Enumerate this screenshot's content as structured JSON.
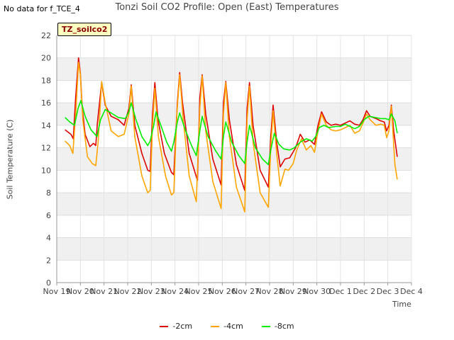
{
  "header": {
    "no_data_text": "No data for f_TCE_4",
    "title": "Tonzi Soil CO2 Profile: Open (East) Temperatures",
    "badge": "TZ_soilco2"
  },
  "chart_data": {
    "type": "line",
    "title": "Tonzi Soil CO2 Profile: Open (East) Temperatures",
    "xlabel": "Time",
    "ylabel": "Soil Temperature (C)",
    "ylim": [
      0,
      22
    ],
    "xlim": [
      0,
      15
    ],
    "grid": true,
    "legend_position": "bottom",
    "yticks": [
      0,
      2,
      4,
      6,
      8,
      10,
      12,
      14,
      16,
      18,
      20,
      22
    ],
    "xticks": [
      {
        "x": 0,
        "label": "Nov 19"
      },
      {
        "x": 1,
        "label": "Nov 20"
      },
      {
        "x": 2,
        "label": "Nov 21"
      },
      {
        "x": 3,
        "label": "Nov 22"
      },
      {
        "x": 4,
        "label": "Nov 23"
      },
      {
        "x": 5,
        "label": "Nov 24"
      },
      {
        "x": 6,
        "label": "Nov 25"
      },
      {
        "x": 7,
        "label": "Nov 26"
      },
      {
        "x": 8,
        "label": "Nov 27"
      },
      {
        "x": 9,
        "label": "Nov 28"
      },
      {
        "x": 10,
        "label": "Nov 29"
      },
      {
        "x": 11,
        "label": "Nov 30"
      },
      {
        "x": 12,
        "label": "Dec 1"
      },
      {
        "x": 13,
        "label": "Dec 2"
      },
      {
        "x": 14,
        "label": "Dec 3"
      },
      {
        "x": 15,
        "label": "Dec 4"
      }
    ],
    "series": [
      {
        "name": "-2cm",
        "color": "#dd0000",
        "points": [
          [
            0.35,
            13.6
          ],
          [
            0.6,
            13.2
          ],
          [
            0.7,
            12.8
          ],
          [
            0.8,
            16.5
          ],
          [
            0.92,
            20.0
          ],
          [
            1.0,
            18.6
          ],
          [
            1.08,
            15.5
          ],
          [
            1.2,
            13.2
          ],
          [
            1.4,
            12.1
          ],
          [
            1.55,
            12.4
          ],
          [
            1.65,
            12.2
          ],
          [
            1.72,
            14.2
          ],
          [
            1.9,
            17.8
          ],
          [
            2.05,
            15.8
          ],
          [
            2.3,
            14.8
          ],
          [
            2.6,
            14.5
          ],
          [
            2.85,
            14.0
          ],
          [
            3.05,
            15.5
          ],
          [
            3.15,
            17.6
          ],
          [
            3.3,
            14.0
          ],
          [
            3.6,
            11.5
          ],
          [
            3.85,
            10.0
          ],
          [
            3.95,
            9.9
          ],
          [
            4.05,
            15.0
          ],
          [
            4.15,
            17.8
          ],
          [
            4.28,
            14.5
          ],
          [
            4.55,
            11.5
          ],
          [
            4.85,
            9.8
          ],
          [
            4.95,
            9.6
          ],
          [
            5.1,
            16.0
          ],
          [
            5.2,
            18.7
          ],
          [
            5.32,
            16.0
          ],
          [
            5.6,
            11.5
          ],
          [
            5.95,
            9.1
          ],
          [
            6.05,
            16.5
          ],
          [
            6.15,
            18.5
          ],
          [
            6.3,
            15.0
          ],
          [
            6.6,
            11.0
          ],
          [
            6.95,
            8.7
          ],
          [
            7.05,
            16.0
          ],
          [
            7.15,
            17.9
          ],
          [
            7.3,
            14.5
          ],
          [
            7.6,
            10.5
          ],
          [
            7.95,
            8.2
          ],
          [
            8.05,
            15.5
          ],
          [
            8.15,
            17.8
          ],
          [
            8.3,
            14.0
          ],
          [
            8.6,
            10.0
          ],
          [
            8.95,
            8.5
          ],
          [
            9.05,
            13.0
          ],
          [
            9.15,
            15.8
          ],
          [
            9.3,
            12.5
          ],
          [
            9.45,
            10.3
          ],
          [
            9.65,
            11.0
          ],
          [
            9.85,
            11.1
          ],
          [
            10.1,
            12.0
          ],
          [
            10.3,
            13.2
          ],
          [
            10.5,
            12.5
          ],
          [
            10.7,
            12.7
          ],
          [
            10.9,
            12.3
          ],
          [
            11.05,
            14.0
          ],
          [
            11.2,
            15.2
          ],
          [
            11.4,
            14.3
          ],
          [
            11.6,
            14.0
          ],
          [
            11.8,
            14.1
          ],
          [
            12.0,
            14.0
          ],
          [
            12.2,
            14.2
          ],
          [
            12.4,
            14.4
          ],
          [
            12.6,
            14.1
          ],
          [
            12.8,
            14.0
          ],
          [
            12.95,
            14.5
          ],
          [
            13.1,
            15.3
          ],
          [
            13.25,
            14.8
          ],
          [
            13.5,
            14.6
          ],
          [
            13.7,
            14.4
          ],
          [
            13.85,
            14.3
          ],
          [
            13.95,
            13.5
          ],
          [
            14.05,
            14.0
          ],
          [
            14.15,
            15.8
          ],
          [
            14.25,
            13.5
          ],
          [
            14.4,
            11.2
          ]
        ]
      },
      {
        "name": "-4cm",
        "color": "#ffa500",
        "points": [
          [
            0.35,
            12.6
          ],
          [
            0.55,
            12.2
          ],
          [
            0.68,
            11.5
          ],
          [
            0.8,
            15.0
          ],
          [
            0.92,
            19.6
          ],
          [
            1.0,
            18.5
          ],
          [
            1.1,
            14.5
          ],
          [
            1.3,
            11.2
          ],
          [
            1.5,
            10.6
          ],
          [
            1.65,
            10.4
          ],
          [
            1.75,
            12.5
          ],
          [
            1.9,
            17.9
          ],
          [
            2.05,
            16.0
          ],
          [
            2.3,
            13.5
          ],
          [
            2.6,
            13.0
          ],
          [
            2.85,
            13.2
          ],
          [
            3.05,
            15.0
          ],
          [
            3.15,
            17.5
          ],
          [
            3.3,
            13.0
          ],
          [
            3.6,
            9.5
          ],
          [
            3.85,
            8.0
          ],
          [
            3.95,
            8.2
          ],
          [
            4.05,
            14.0
          ],
          [
            4.15,
            17.3
          ],
          [
            4.3,
            13.0
          ],
          [
            4.6,
            9.5
          ],
          [
            4.85,
            7.8
          ],
          [
            4.95,
            8.0
          ],
          [
            5.08,
            15.0
          ],
          [
            5.2,
            18.5
          ],
          [
            5.35,
            14.5
          ],
          [
            5.6,
            9.5
          ],
          [
            5.9,
            7.2
          ],
          [
            6.05,
            15.5
          ],
          [
            6.15,
            18.4
          ],
          [
            6.3,
            13.5
          ],
          [
            6.6,
            9.0
          ],
          [
            6.95,
            6.6
          ],
          [
            7.05,
            15.0
          ],
          [
            7.15,
            17.8
          ],
          [
            7.3,
            13.0
          ],
          [
            7.6,
            8.5
          ],
          [
            7.95,
            6.3
          ],
          [
            8.05,
            14.5
          ],
          [
            8.15,
            17.5
          ],
          [
            8.3,
            12.5
          ],
          [
            8.6,
            8.0
          ],
          [
            8.95,
            6.7
          ],
          [
            9.05,
            12.0
          ],
          [
            9.15,
            15.3
          ],
          [
            9.3,
            11.5
          ],
          [
            9.45,
            8.6
          ],
          [
            9.65,
            10.1
          ],
          [
            9.8,
            10.0
          ],
          [
            10.0,
            10.6
          ],
          [
            10.15,
            11.8
          ],
          [
            10.35,
            12.8
          ],
          [
            10.55,
            11.8
          ],
          [
            10.75,
            12.2
          ],
          [
            10.9,
            11.6
          ],
          [
            11.05,
            13.5
          ],
          [
            11.2,
            15.0
          ],
          [
            11.4,
            14.0
          ],
          [
            11.6,
            13.6
          ],
          [
            11.8,
            13.5
          ],
          [
            12.0,
            13.6
          ],
          [
            12.2,
            13.8
          ],
          [
            12.4,
            14.0
          ],
          [
            12.6,
            13.3
          ],
          [
            12.8,
            13.5
          ],
          [
            12.95,
            14.2
          ],
          [
            13.1,
            15.0
          ],
          [
            13.25,
            14.5
          ],
          [
            13.5,
            14.0
          ],
          [
            13.7,
            14.1
          ],
          [
            13.85,
            14.0
          ],
          [
            13.95,
            12.9
          ],
          [
            14.05,
            13.5
          ],
          [
            14.15,
            15.7
          ],
          [
            14.3,
            10.5
          ],
          [
            14.4,
            9.2
          ]
        ]
      },
      {
        "name": "-8cm",
        "color": "#00ee00",
        "points": [
          [
            0.35,
            14.7
          ],
          [
            0.55,
            14.3
          ],
          [
            0.75,
            14.0
          ],
          [
            0.9,
            15.5
          ],
          [
            1.02,
            16.2
          ],
          [
            1.2,
            14.8
          ],
          [
            1.45,
            13.6
          ],
          [
            1.7,
            13.0
          ],
          [
            1.85,
            14.5
          ],
          [
            2.05,
            15.4
          ],
          [
            2.3,
            15.1
          ],
          [
            2.6,
            14.7
          ],
          [
            2.9,
            14.6
          ],
          [
            3.05,
            15.2
          ],
          [
            3.15,
            16.0
          ],
          [
            3.35,
            14.5
          ],
          [
            3.6,
            13.0
          ],
          [
            3.85,
            12.2
          ],
          [
            3.95,
            12.6
          ],
          [
            4.1,
            14.0
          ],
          [
            4.2,
            15.2
          ],
          [
            4.4,
            14.0
          ],
          [
            4.65,
            12.5
          ],
          [
            4.85,
            11.7
          ],
          [
            4.95,
            12.5
          ],
          [
            5.1,
            14.3
          ],
          [
            5.2,
            15.1
          ],
          [
            5.45,
            13.5
          ],
          [
            5.7,
            12.2
          ],
          [
            5.9,
            11.3
          ],
          [
            6.05,
            13.5
          ],
          [
            6.15,
            14.8
          ],
          [
            6.4,
            13.0
          ],
          [
            6.7,
            11.8
          ],
          [
            6.95,
            11.0
          ],
          [
            7.05,
            13.0
          ],
          [
            7.15,
            14.3
          ],
          [
            7.4,
            12.5
          ],
          [
            7.7,
            11.3
          ],
          [
            7.95,
            10.6
          ],
          [
            8.05,
            12.5
          ],
          [
            8.15,
            14.0
          ],
          [
            8.4,
            12.0
          ],
          [
            8.7,
            11.0
          ],
          [
            8.95,
            10.5
          ],
          [
            9.05,
            11.8
          ],
          [
            9.2,
            13.3
          ],
          [
            9.4,
            12.3
          ],
          [
            9.6,
            11.9
          ],
          [
            9.85,
            11.8
          ],
          [
            10.05,
            12.0
          ],
          [
            10.3,
            12.5
          ],
          [
            10.55,
            12.8
          ],
          [
            10.8,
            12.6
          ],
          [
            10.95,
            13.0
          ],
          [
            11.1,
            13.8
          ],
          [
            11.3,
            14.0
          ],
          [
            11.5,
            13.8
          ],
          [
            11.8,
            13.9
          ],
          [
            12.0,
            13.9
          ],
          [
            12.2,
            14.1
          ],
          [
            12.4,
            13.9
          ],
          [
            12.6,
            13.7
          ],
          [
            12.8,
            13.9
          ],
          [
            13.0,
            14.5
          ],
          [
            13.2,
            14.8
          ],
          [
            13.45,
            14.7
          ],
          [
            13.7,
            14.6
          ],
          [
            13.9,
            14.6
          ],
          [
            14.05,
            14.5
          ],
          [
            14.15,
            15.0
          ],
          [
            14.3,
            14.4
          ],
          [
            14.4,
            13.3
          ]
        ]
      }
    ]
  }
}
